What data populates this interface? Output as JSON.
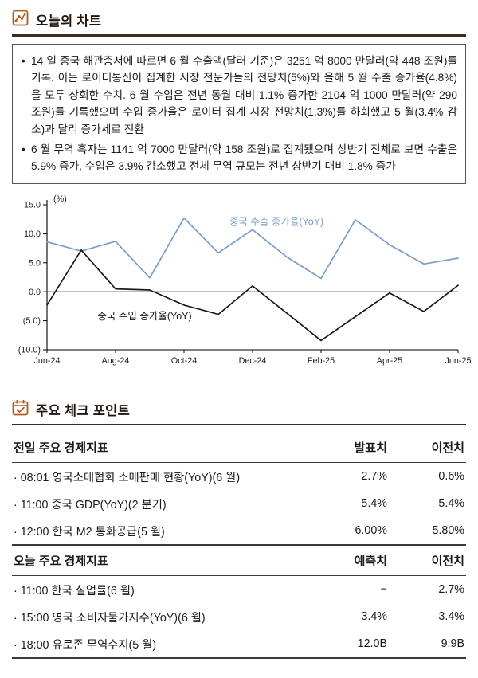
{
  "colors": {
    "accent": "#b05a1d",
    "rule": "#382c1e",
    "export_line": "#7a9cc9",
    "import_line": "#1a1a1a"
  },
  "section1": {
    "title": "오늘의 차트",
    "bullets": [
      "14 일 중국 해관총서에 따르면 6 월 수출액(달러 기준)은 3251 억 8000 만달러(약 448 조원)를 기록. 이는 로이터통신이 집계한 시장 전문가들의 전망치(5%)와 올해 5 월 수출 증가율(4.8%)을 모두 상회한 수치. 6 월 수입은 전년 동월 대비 1.1% 증가한 2104 억 1000 만달러(약 290 조원)를 기록했으며 수입 증가율은 로이터 집계 시장 전망치(1.3%)를 하회했고 5 월(3.4% 감소)과 달리 증가세로 전환",
      "6 월 무역 흑자는 1141 억 7000 만달러(약 158 조원)로 집계됐으며 상반기 전체로 보면 수출은 5.9% 증가, 수입은 3.9% 감소했고 전체 무역 규모는 전년 상반기 대비 1.8% 증가"
    ]
  },
  "chart_data": {
    "type": "line",
    "unit_label": "(%)",
    "x": [
      "Jun-24",
      "Jul-24",
      "Aug-24",
      "Sep-24",
      "Oct-24",
      "Nov-24",
      "Dec-24",
      "Jan-25",
      "Feb-25",
      "Mar-25",
      "Apr-25",
      "May-25",
      "Jun-25"
    ],
    "x_tick_labels": [
      "Jun-24",
      "Aug-24",
      "Oct-24",
      "Dec-24",
      "Feb-25",
      "Apr-25",
      "Jun-25"
    ],
    "ylim": [
      -10,
      15
    ],
    "y_ticks": [
      15,
      10,
      5,
      0,
      -5,
      -10
    ],
    "y_tick_labels": [
      "15.0",
      "10.0",
      "5.0",
      "0.0",
      "(5.0)",
      "(10.0)"
    ],
    "grid": false,
    "legend_position": "inline-annotations",
    "series": [
      {
        "name": "중국 수출 증가율(YoY)",
        "color": "#7a9cc9",
        "values": [
          8.6,
          7.0,
          8.7,
          2.4,
          12.7,
          6.7,
          10.7,
          6.0,
          2.3,
          12.4,
          8.1,
          4.8,
          5.8
        ]
      },
      {
        "name": "중국 수입 증가율(YoY)",
        "color": "#1a1a1a",
        "values": [
          -2.3,
          7.2,
          0.5,
          0.3,
          -2.3,
          -3.9,
          1.0,
          -3.7,
          -8.4,
          -4.3,
          -0.2,
          -3.4,
          1.1
        ]
      }
    ]
  },
  "section2": {
    "title": "주요 체크 포인트",
    "table": {
      "groups": [
        {
          "header": {
            "name": "전일 주요 경제지표",
            "col1": "발표치",
            "col2": "이전치"
          },
          "rows": [
            {
              "name": "· 08:01 영국소매협회 소매판매 현황(YoY)(6 월)",
              "col1": "2.7%",
              "col2": "0.6%"
            },
            {
              "name": "· 11:00 중국 GDP(YoY)(2 분기)",
              "col1": "5.4%",
              "col2": "5.4%"
            },
            {
              "name": "· 12:00 한국 M2 통화공급(5 월)",
              "col1": "6.00%",
              "col2": "5.80%"
            }
          ]
        },
        {
          "header": {
            "name": "오늘 주요 경제지표",
            "col1": "예측치",
            "col2": "이전치"
          },
          "rows": [
            {
              "name": "· 11:00 한국 실업률(6 월)",
              "col1": "−",
              "col2": "2.7%"
            },
            {
              "name": "· 15:00 영국 소비자물가지수(YoY)(6 월)",
              "col1": "3.4%",
              "col2": "3.4%"
            },
            {
              "name": "· 18:00 유로존 무역수지(5 월)",
              "col1": "12.0B",
              "col2": "9.9B"
            }
          ]
        }
      ]
    }
  }
}
